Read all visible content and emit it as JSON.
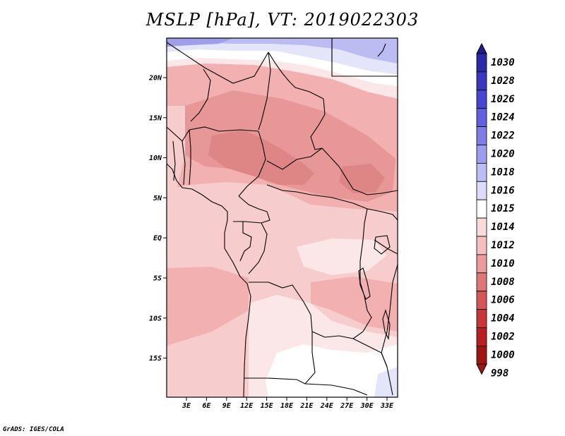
{
  "title": "MSLP [hPa], VT: 2019022303",
  "credit": "GrADS: IGES/COLA",
  "lat_ticks": [
    "20N",
    "15N",
    "10N",
    "5N",
    "EQ",
    "5S",
    "10S",
    "15S"
  ],
  "lon_ticks": [
    "3E",
    "6E",
    "9E",
    "12E",
    "15E",
    "18E",
    "21E",
    "24E",
    "27E",
    "30E",
    "33E"
  ],
  "colorbar": {
    "labels": [
      "1030",
      "1028",
      "1026",
      "1024",
      "1022",
      "1020",
      "1018",
      "1016",
      "1015",
      "1014",
      "1012",
      "1010",
      "1008",
      "1006",
      "1004",
      "1002",
      "1000",
      "998"
    ],
    "colors": [
      "#211b8a",
      "#2a2aa6",
      "#3838bf",
      "#4646d0",
      "#6161e0",
      "#7d7de8",
      "#9d9df0",
      "#bdbdf6",
      "#dcdcfa",
      "#ffffff",
      "#fbdada",
      "#f6bfbf",
      "#ec9a9a",
      "#e07777",
      "#d45656",
      "#c83636",
      "#b82020",
      "#a01414"
    ]
  },
  "map_colors": {
    "p1014": "#fbe7e7",
    "p1012": "#f7cccc",
    "p1010": "#f2b0b0",
    "p1008": "#e89797",
    "p1006": "#de8686",
    "p1015": "#ffffff",
    "p1016": "#e4e4fb",
    "p1018": "#bcbcf3",
    "p1020": "#9e9ee9"
  }
}
